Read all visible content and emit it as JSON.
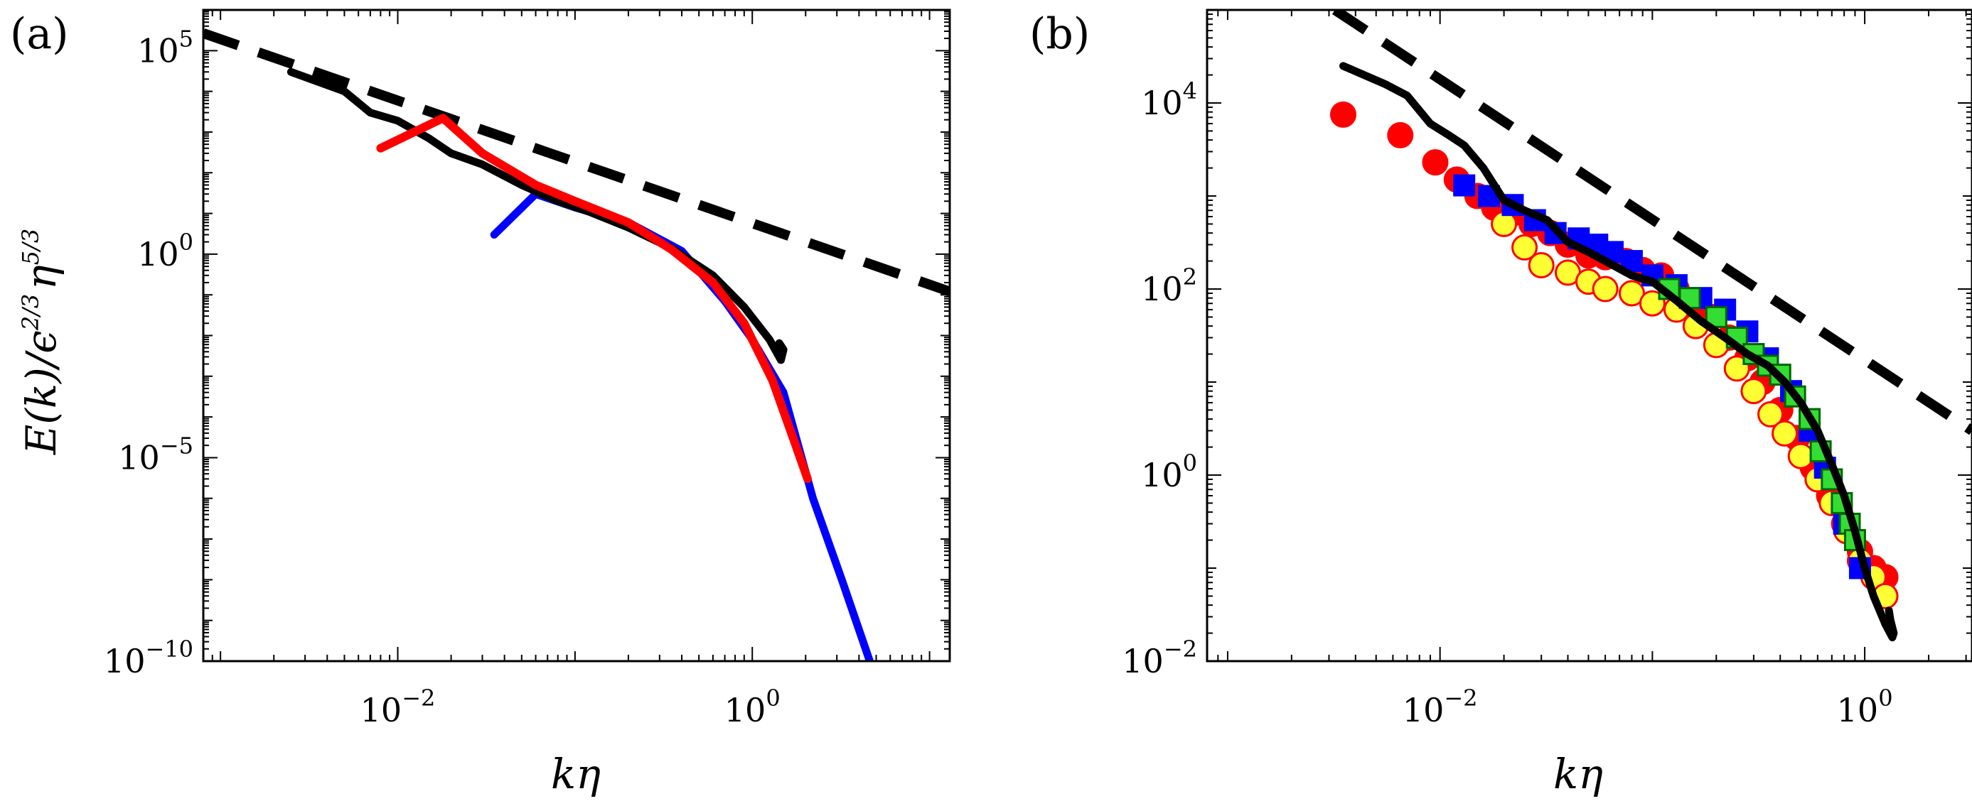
{
  "chart_data": [
    {
      "type": "line",
      "panel_label": "(a)",
      "xlabel": "kη",
      "ylabel": "E(k)/ϵ^{2/3}η^{5/3}",
      "xscale": "log",
      "yscale": "log",
      "xlim": [
        0.0008,
        13
      ],
      "ylim": [
        1e-10,
        1000000.0
      ],
      "x_ticks": [
        {
          "value": 0.01,
          "base": "10",
          "exp": "−2"
        },
        {
          "value": 1,
          "base": "10",
          "exp": "0"
        }
      ],
      "y_ticks": [
        {
          "value": 1e-10,
          "base": "10",
          "exp": "−10"
        },
        {
          "value": 1e-05,
          "base": "10",
          "exp": "−5"
        },
        {
          "value": 1,
          "base": "10",
          "exp": "0"
        },
        {
          "value": 100000.0,
          "base": "10",
          "exp": "5"
        }
      ],
      "series": [
        {
          "color": "#000000",
          "dash": true,
          "width": 14,
          "x": [
            0.0008,
            13
          ],
          "y": [
            268000,
            0.12
          ]
        },
        {
          "color": "#0000ff",
          "dash": false,
          "width": 11,
          "x": [
            0.035,
            0.06,
            0.1,
            0.2,
            0.4,
            0.7,
            1.0,
            1.5,
            2.2,
            3.2,
            4.6,
            5.5
          ],
          "y": [
            3,
            30,
            14,
            6,
            1.2,
            0.07,
            0.008,
            0.0004,
            1e-06,
            1e-08,
            1e-10,
            1e-11
          ]
        },
        {
          "color": "#000000",
          "dash": false,
          "width": 11,
          "x": [
            0.0025,
            0.005,
            0.007,
            0.01,
            0.015,
            0.02,
            0.03,
            0.05,
            0.08,
            0.12,
            0.2,
            0.35,
            0.6,
            0.9,
            1.25,
            1.45,
            1.5,
            1.42
          ],
          "y": [
            30000,
            10000,
            3000,
            1900,
            700,
            300,
            160,
            50,
            20,
            11,
            4.5,
            1.4,
            0.3,
            0.05,
            0.008,
            0.0025,
            0.0045,
            0.0065
          ]
        },
        {
          "color": "#ff0000",
          "dash": false,
          "width": 12,
          "x": [
            0.008,
            0.018,
            0.03,
            0.06,
            0.1,
            0.2,
            0.35,
            0.6,
            0.9,
            1.3,
            1.8,
            2.05
          ],
          "y": [
            400,
            2200,
            300,
            50,
            20,
            6,
            1.3,
            0.2,
            0.02,
            0.0008,
            1.5e-05,
            3e-06
          ]
        }
      ]
    },
    {
      "type": "scatter",
      "panel_label": "(b)",
      "xlabel": "kη",
      "xscale": "log",
      "yscale": "log",
      "xlim": [
        0.0008,
        3.2
      ],
      "ylim": [
        0.01,
        100000.0
      ],
      "x_ticks": [
        {
          "value": 0.01,
          "base": "10",
          "exp": "−2"
        },
        {
          "value": 1,
          "base": "10",
          "exp": "0"
        }
      ],
      "y_ticks": [
        {
          "value": 0.01,
          "base": "10",
          "exp": "−2"
        },
        {
          "value": 1,
          "base": "10",
          "exp": "0"
        },
        {
          "value": 100,
          "base": "10",
          "exp": "2"
        },
        {
          "value": 10000,
          "base": "10",
          "exp": "4"
        }
      ],
      "series": [
        {
          "color": "#000000",
          "dash": true,
          "width": 14,
          "x": [
            0.0032,
            3.2
          ],
          "y": [
            100000,
            3
          ]
        },
        {
          "marker": "circle",
          "color": "#ff0000",
          "edge": "#ff0000",
          "x": [
            0.0035,
            0.0065,
            0.0095,
            0.012,
            0.015,
            0.018,
            0.022,
            0.027,
            0.033,
            0.04,
            0.05,
            0.06,
            0.075,
            0.09,
            0.11,
            0.13,
            0.16,
            0.19,
            0.23,
            0.28,
            0.33,
            0.4,
            0.48,
            0.57,
            0.68,
            0.8,
            0.95,
            1.1,
            1.25
          ],
          "y": [
            7500,
            4500,
            2300,
            1500,
            1000,
            750,
            650,
            500,
            400,
            300,
            230,
            220,
            200,
            160,
            140,
            100,
            70,
            50,
            30,
            18,
            10,
            5,
            2.5,
            1.2,
            0.6,
            0.3,
            0.15,
            0.1,
            0.08
          ]
        },
        {
          "marker": "circle",
          "color": "#ffff33",
          "edge": "#ff0000",
          "x": [
            0.02,
            0.025,
            0.03,
            0.04,
            0.05,
            0.06,
            0.08,
            0.1,
            0.13,
            0.16,
            0.2,
            0.25,
            0.3,
            0.36,
            0.42,
            0.5,
            0.6,
            0.7,
            0.82,
            0.95,
            1.1,
            1.25
          ],
          "y": [
            500,
            280,
            180,
            150,
            120,
            100,
            90,
            70,
            60,
            40,
            25,
            14,
            8,
            4.5,
            2.8,
            1.6,
            0.9,
            0.5,
            0.25,
            0.12,
            0.08,
            0.05
          ]
        },
        {
          "marker": "square",
          "color": "#0000ff",
          "edge": "#0000ff",
          "x": [
            0.013,
            0.017,
            0.022,
            0.028,
            0.035,
            0.045,
            0.055,
            0.065,
            0.08,
            0.1,
            0.13,
            0.17,
            0.22,
            0.28,
            0.35,
            0.45,
            0.55,
            0.65,
            0.8,
            0.95
          ],
          "y": [
            1300,
            1000,
            800,
            550,
            400,
            350,
            300,
            250,
            200,
            140,
            110,
            80,
            60,
            35,
            18,
            8,
            3,
            1.2,
            0.3,
            0.1
          ]
        },
        {
          "marker": "square",
          "color": "#33dd33",
          "edge": "#006600",
          "x": [
            0.12,
            0.15,
            0.2,
            0.25,
            0.3,
            0.35,
            0.4,
            0.47,
            0.55,
            0.62,
            0.7,
            0.78,
            0.85,
            0.9
          ],
          "y": [
            100,
            80,
            50,
            30,
            20,
            15,
            12,
            7,
            4,
            1.8,
            0.9,
            0.5,
            0.3,
            0.2
          ]
        },
        {
          "color": "#000000",
          "dash": false,
          "width": 11,
          "x": [
            0.0035,
            0.0055,
            0.007,
            0.009,
            0.011,
            0.013,
            0.016,
            0.02,
            0.025,
            0.032,
            0.04,
            0.05,
            0.06,
            0.08,
            0.1,
            0.13,
            0.17,
            0.22,
            0.28,
            0.35,
            0.42,
            0.5,
            0.6,
            0.7,
            0.8,
            0.9,
            1.0,
            1.1,
            1.25,
            1.35,
            1.37,
            1.32,
            1.3
          ],
          "y": [
            25000,
            16000,
            12000,
            6000,
            4500,
            3500,
            2000,
            900,
            700,
            550,
            320,
            250,
            200,
            140,
            120,
            75,
            45,
            30,
            20,
            15,
            10,
            6,
            3,
            1.3,
            0.6,
            0.25,
            0.1,
            0.05,
            0.025,
            0.018,
            0.02,
            0.028,
            0.035
          ]
        }
      ]
    }
  ]
}
